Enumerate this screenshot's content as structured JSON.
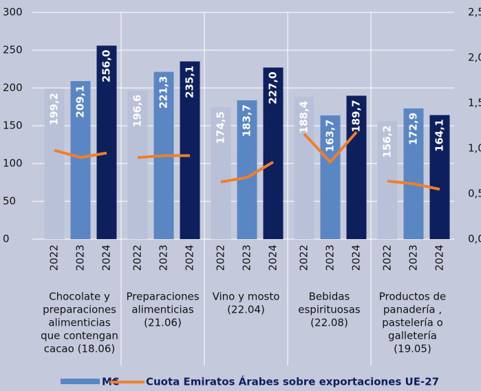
{
  "chart_data": {
    "type": "bar_line",
    "groups": [
      [
        "Chocolate y",
        "preparaciones",
        "alimenticias",
        "que contengan",
        "cacao  (18.06)"
      ],
      [
        "Preparaciones",
        "alimenticias",
        "(21.06)"
      ],
      [
        "Vino y mosto",
        "(22.04)"
      ],
      [
        "Bebidas",
        "espirituosas",
        "(22.08)"
      ],
      [
        "Productos de",
        "panadería ,",
        "pastelería o",
        "galletería",
        "(19.05)"
      ]
    ],
    "categories": [
      "2022",
      "2023",
      "2024",
      "2022",
      "2023",
      "2024",
      "2022",
      "2023",
      "2024",
      "2022",
      "2023",
      "2024",
      "2022",
      "2023",
      "2024"
    ],
    "bar_colors": [
      "#b9c1d9",
      "#5b86c4",
      "#0d1f5c"
    ],
    "series": [
      {
        "name": "M€",
        "color": "#5b86c4",
        "type": "bar",
        "values": [
          199.2,
          209.1,
          256.0,
          196.6,
          221.3,
          235.1,
          174.5,
          183.7,
          227.0,
          188.4,
          163.7,
          189.7,
          156.2,
          172.9,
          164.1
        ],
        "value_labels": [
          "199,2",
          "209,1",
          "256,0",
          "196,6",
          "221,3",
          "235,1",
          "174,5",
          "183,7",
          "227,0",
          "188,4",
          "163,7",
          "189,7",
          "156,2",
          "172,9",
          "164,1"
        ]
      },
      {
        "name": "Cuota Emiratos Árabes sobre exportaciones UE-27",
        "color": "#f07f2a",
        "type": "line",
        "axis": "y2",
        "values": [
          0.98,
          0.9,
          0.95,
          0.9,
          0.92,
          0.92,
          0.63,
          0.68,
          0.85,
          1.16,
          0.85,
          1.18,
          0.64,
          0.61,
          0.55
        ]
      }
    ],
    "ylim": [
      0,
      300
    ],
    "yticks": [
      0,
      50,
      100,
      150,
      200,
      250,
      300
    ],
    "y2lim": [
      0,
      2.5
    ],
    "y2ticks": [
      {
        "value": 0,
        "label": "0,0"
      },
      {
        "value": 0.5,
        "label": "0,5"
      },
      {
        "value": 1,
        "label": "1,0"
      },
      {
        "value": 1.5,
        "label": "1,5"
      },
      {
        "value": 2,
        "label": "2,0"
      },
      {
        "value": 2.5,
        "label": "2,5"
      }
    ],
    "grid": true
  }
}
